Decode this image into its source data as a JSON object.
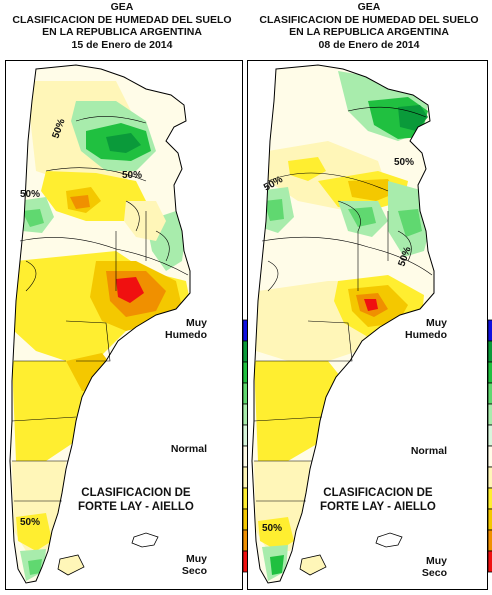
{
  "maps": [
    {
      "id": "left",
      "header": [
        "GEA",
        "CLASIFICACION DE HUMEDAD DEL SUELO",
        "EN LA REPUBLICA ARGENTINA",
        "15  de Enero de 2014"
      ],
      "contour_label": "50%",
      "classification_label": [
        "CLASIFICACION DE",
        "FORTE LAY - AIELLO"
      ],
      "legend": {
        "top": [
          "Muy",
          "Humedo"
        ],
        "middle": "Normal",
        "bottom": [
          "Muy",
          "Seco"
        ]
      }
    },
    {
      "id": "right",
      "header": [
        "GEA",
        "CLASIFICACION DE HUMEDAD DEL SUELO",
        "EN LA REPUBLICA ARGENTINA",
        "08  de Enero de 2014"
      ],
      "contour_label": "50%",
      "classification_label": [
        "CLASIFICACION DE",
        "FORTE LAY - AIELLO"
      ],
      "legend": {
        "top": [
          "Muy",
          "Humedo"
        ],
        "middle": "Normal",
        "bottom": [
          "Muy",
          "Seco"
        ]
      }
    }
  ],
  "legend_scale": [
    {
      "class": "muy-humedo",
      "color": "#1010e0"
    },
    {
      "class": "humedo-5",
      "color": "#0a9a3a"
    },
    {
      "class": "humedo-4",
      "color": "#20c040"
    },
    {
      "class": "humedo-3",
      "color": "#60d870"
    },
    {
      "class": "humedo-2",
      "color": "#a8ecac"
    },
    {
      "class": "humedo-1",
      "color": "#d8f6dc"
    },
    {
      "class": "normal",
      "color": "#fffce8"
    },
    {
      "class": "seco-1",
      "color": "#fff6b8"
    },
    {
      "class": "seco-2",
      "color": "#ffee30"
    },
    {
      "class": "seco-3",
      "color": "#f4c800"
    },
    {
      "class": "seco-4",
      "color": "#f09000"
    },
    {
      "class": "muy-seco",
      "color": "#f01010"
    }
  ]
}
